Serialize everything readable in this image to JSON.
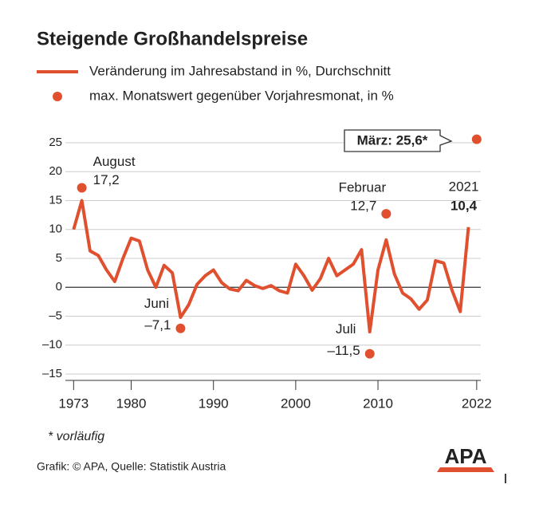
{
  "chart_data": {
    "type": "line",
    "title": "Steigende Großhandelspreise",
    "series": [
      {
        "name": "Veränderung im Jahresabstand in %, Durchschnitt",
        "color": "#e0502f",
        "x": [
          1973,
          1974,
          1975,
          1976,
          1977,
          1978,
          1979,
          1980,
          1981,
          1982,
          1983,
          1984,
          1985,
          1986,
          1987,
          1988,
          1989,
          1990,
          1991,
          1992,
          1993,
          1994,
          1995,
          1996,
          1997,
          1998,
          1999,
          2000,
          2001,
          2002,
          2003,
          2004,
          2005,
          2006,
          2007,
          2008,
          2009,
          2010,
          2011,
          2012,
          2013,
          2014,
          2015,
          2016,
          2017,
          2018,
          2019,
          2020,
          2021
        ],
        "values": [
          10,
          15,
          6.3,
          5.5,
          3,
          1,
          5,
          8.5,
          8,
          3,
          0,
          3.8,
          2.5,
          -5.2,
          -3,
          0.5,
          2,
          3,
          0.8,
          -0.3,
          -0.6,
          1.2,
          0.3,
          -0.2,
          0.3,
          -0.6,
          -1,
          4,
          2,
          -0.5,
          1.5,
          5,
          2,
          3,
          4,
          6.5,
          -7.7,
          3,
          8.2,
          2.3,
          -1,
          -2,
          -3.8,
          -2.2,
          4.6,
          4.2,
          -0.5,
          -4.2,
          10.4
        ],
        "end_label": {
          "year": "2021",
          "value_label": "10,4"
        }
      },
      {
        "name": "max. Monatswert gegenüber Vorjahresmonat, in %",
        "color": "#e0502f",
        "x": [
          1974,
          1986,
          2009,
          2011,
          2022
        ],
        "values": [
          17.2,
          -7.1,
          -11.5,
          12.7,
          25.6
        ],
        "months": [
          "August",
          "Juni",
          "Juli",
          "Februar",
          null
        ],
        "value_labels": [
          "17,2",
          "–7,1",
          "–11,5",
          "12,7",
          "März: 25,6*"
        ]
      }
    ],
    "xlim": [
      1972,
      2022.5
    ],
    "xticks": [
      1973,
      1980,
      1990,
      2000,
      2010,
      2022
    ],
    "ylim": [
      -15,
      25
    ],
    "yticks": [
      25,
      20,
      15,
      10,
      5,
      0,
      {
        "value": -5,
        "label": "–5"
      },
      {
        "value": -10,
        "label": "–10"
      },
      {
        "value": -15,
        "label": "–15"
      }
    ],
    "grid": true,
    "footnote": "* vorläufig",
    "source": "Grafik: © APA, Quelle: Statistik Austria",
    "logo": "APA"
  }
}
